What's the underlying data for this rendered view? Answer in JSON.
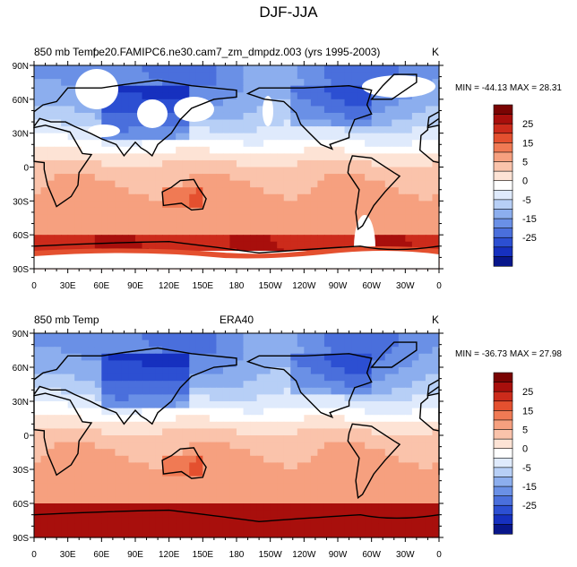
{
  "figure": {
    "title": "DJF-JJA"
  },
  "palette": {
    "levels": [
      "25",
      "15",
      "5",
      "0",
      "-5",
      "-15",
      "-25"
    ],
    "colors": [
      "#7a0403",
      "#a80f0c",
      "#cc2b1b",
      "#e4502f",
      "#f07a54",
      "#f6a07f",
      "#fac3ab",
      "#fde3d5",
      "#ffffff",
      "#dfeafc",
      "#b7cff6",
      "#8caeee",
      "#6a90e6",
      "#4a6fdc",
      "#2c4fd2",
      "#1630bf",
      "#08168a"
    ]
  },
  "chart_data": [
    {
      "type": "heatmap",
      "left_title": "850 mb Temp",
      "center_title": "f.e20.FAMIPC6.ne30.cam7_zm_dmpdz.003 (yrs 1995-2003)",
      "units": "K",
      "stats": "MIN = -44.13  MAX =  28.31",
      "min": -44.13,
      "max": 28.31,
      "xticks": [
        "0",
        "30E",
        "60E",
        "90E",
        "120E",
        "150E",
        "180",
        "150W",
        "120W",
        "90W",
        "60W",
        "30W",
        "0"
      ],
      "yticks": [
        "90N",
        "60N",
        "30N",
        "0",
        "30S",
        "60S",
        "90S"
      ],
      "colorbar_labels": [
        "25",
        "15",
        "5",
        "0",
        "-5",
        "-15",
        "-25"
      ],
      "xlim": [
        0,
        360
      ],
      "ylim": [
        -90,
        90
      ]
    },
    {
      "type": "heatmap",
      "left_title": "850 mb Temp",
      "center_title": "ERA40",
      "units": "K",
      "stats": "MIN = -36.73  MAX =  27.98",
      "min": -36.73,
      "max": 27.98,
      "xticks": [
        "0",
        "30E",
        "60E",
        "90E",
        "120E",
        "150E",
        "180",
        "150W",
        "120W",
        "90W",
        "60W",
        "30W",
        "0"
      ],
      "yticks": [
        "90N",
        "60N",
        "30N",
        "0",
        "30S",
        "60S",
        "90S"
      ],
      "colorbar_labels": [
        "25",
        "15",
        "5",
        "0",
        "-5",
        "-15",
        "-25"
      ],
      "xlim": [
        0,
        360
      ],
      "ylim": [
        -90,
        90
      ]
    }
  ]
}
